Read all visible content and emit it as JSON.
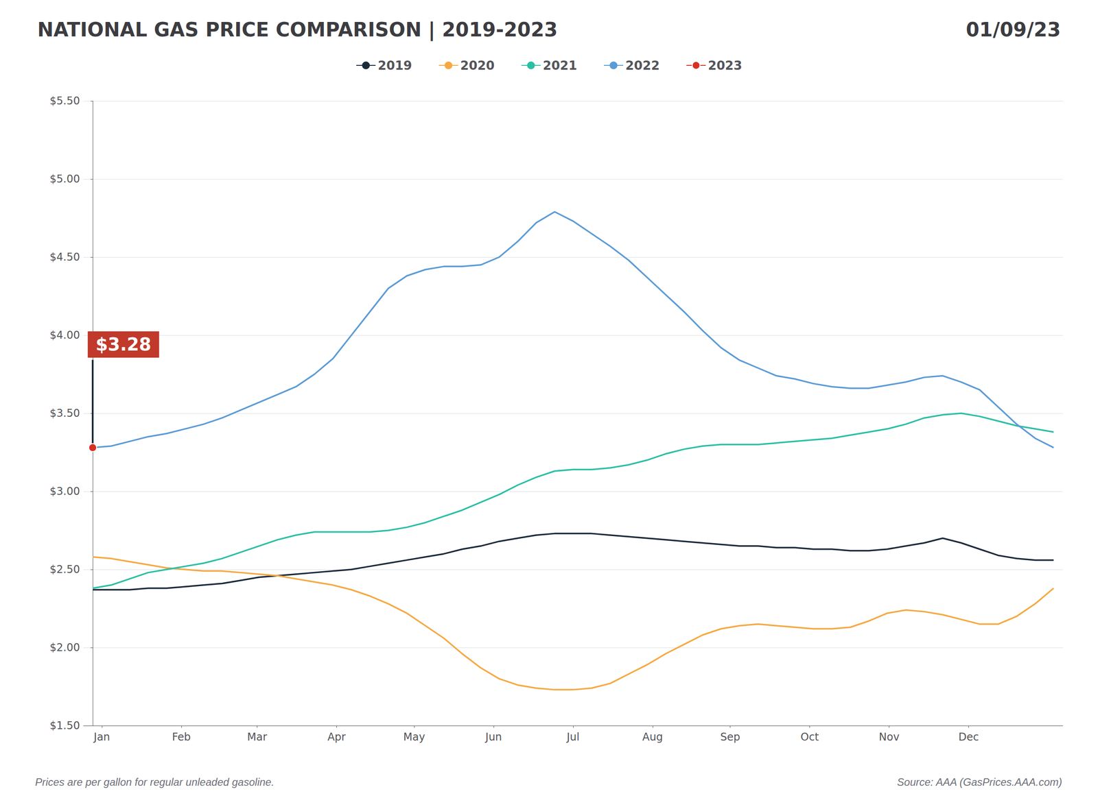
{
  "chart_data": {
    "type": "line",
    "title": "NATIONAL GAS PRICE COMPARISON | 2019-2023",
    "subtitle": "01/09/23",
    "x": [
      0,
      1,
      2,
      3,
      4,
      5,
      6,
      7,
      8,
      9,
      10,
      11,
      12,
      13,
      14,
      15,
      16,
      17,
      18,
      19,
      20,
      21,
      22,
      23,
      24,
      25,
      26,
      27,
      28,
      29,
      30,
      31,
      32,
      33,
      34,
      35,
      36,
      37,
      38,
      39,
      40,
      41,
      42,
      43,
      44,
      45,
      46,
      47,
      48,
      49,
      50,
      51,
      52
    ],
    "series": [
      {
        "name": "2019",
        "color": "#1C2B3A",
        "values": [
          2.37,
          2.37,
          2.37,
          2.38,
          2.38,
          2.39,
          2.4,
          2.41,
          2.43,
          2.45,
          2.46,
          2.47,
          2.48,
          2.49,
          2.5,
          2.52,
          2.54,
          2.56,
          2.58,
          2.6,
          2.63,
          2.65,
          2.68,
          2.7,
          2.72,
          2.73,
          2.73,
          2.73,
          2.72,
          2.71,
          2.7,
          2.69,
          2.68,
          2.67,
          2.66,
          2.65,
          2.65,
          2.64,
          2.64,
          2.63,
          2.63,
          2.62,
          2.62,
          2.63,
          2.65,
          2.67,
          2.7,
          2.67,
          2.63,
          2.59,
          2.57,
          2.56,
          2.56
        ]
      },
      {
        "name": "2020",
        "color": "#F5A942",
        "values": [
          2.58,
          2.57,
          2.55,
          2.53,
          2.51,
          2.5,
          2.49,
          2.49,
          2.48,
          2.47,
          2.46,
          2.44,
          2.42,
          2.4,
          2.37,
          2.33,
          2.28,
          2.22,
          2.14,
          2.06,
          1.96,
          1.87,
          1.8,
          1.76,
          1.74,
          1.73,
          1.73,
          1.74,
          1.77,
          1.83,
          1.89,
          1.96,
          2.02,
          2.08,
          2.12,
          2.14,
          2.15,
          2.14,
          2.13,
          2.12,
          2.12,
          2.13,
          2.17,
          2.22,
          2.24,
          2.23,
          2.21,
          2.18,
          2.15,
          2.15,
          2.2,
          2.28,
          2.38
        ]
      },
      {
        "name": "2021",
        "color": "#2BBFA4",
        "values": [
          2.38,
          2.4,
          2.44,
          2.48,
          2.5,
          2.52,
          2.54,
          2.57,
          2.61,
          2.65,
          2.69,
          2.72,
          2.74,
          2.74,
          2.74,
          2.74,
          2.75,
          2.77,
          2.8,
          2.84,
          2.88,
          2.93,
          2.98,
          3.04,
          3.09,
          3.13,
          3.14,
          3.14,
          3.15,
          3.17,
          3.2,
          3.24,
          3.27,
          3.29,
          3.3,
          3.3,
          3.3,
          3.31,
          3.32,
          3.33,
          3.34,
          3.36,
          3.38,
          3.4,
          3.43,
          3.47,
          3.49,
          3.5,
          3.48,
          3.45,
          3.42,
          3.4,
          3.38
        ]
      },
      {
        "name": "2022",
        "color": "#5B9BD5",
        "values": [
          3.28,
          3.29,
          3.32,
          3.35,
          3.37,
          3.4,
          3.43,
          3.47,
          3.52,
          3.57,
          3.62,
          3.67,
          3.75,
          3.85,
          4.0,
          4.15,
          4.3,
          4.38,
          4.42,
          4.44,
          4.44,
          4.45,
          4.5,
          4.6,
          4.72,
          4.79,
          4.73,
          4.65,
          4.57,
          4.48,
          4.37,
          4.26,
          4.15,
          4.03,
          3.92,
          3.84,
          3.79,
          3.74,
          3.72,
          3.69,
          3.67,
          3.66,
          3.66,
          3.68,
          3.7,
          3.73,
          3.74,
          3.7,
          3.65,
          3.54,
          3.43,
          3.34,
          3.28
        ]
      },
      {
        "name": "2023",
        "color": "#D93025",
        "marker": "circle",
        "values": [
          3.28,
          null,
          null,
          null,
          null,
          null,
          null,
          null,
          null,
          null,
          null,
          null,
          null,
          null,
          null,
          null,
          null,
          null,
          null,
          null,
          null,
          null,
          null,
          null,
          null,
          null,
          null,
          null,
          null,
          null,
          null,
          null,
          null,
          null,
          null,
          null,
          null,
          null,
          null,
          null,
          null,
          null,
          null,
          null,
          null,
          null,
          null,
          null,
          null,
          null,
          null,
          null,
          null
        ]
      }
    ],
    "xlim": [
      -0.5,
      52.5
    ],
    "xticks": [
      {
        "value": 0.5,
        "label": "Jan"
      },
      {
        "value": 4.8,
        "label": "Feb"
      },
      {
        "value": 8.9,
        "label": "Mar"
      },
      {
        "value": 13.2,
        "label": "Apr"
      },
      {
        "value": 17.4,
        "label": "May"
      },
      {
        "value": 21.7,
        "label": "Jun"
      },
      {
        "value": 26.0,
        "label": "Jul"
      },
      {
        "value": 30.3,
        "label": "Aug"
      },
      {
        "value": 34.5,
        "label": "Sep"
      },
      {
        "value": 38.8,
        "label": "Oct"
      },
      {
        "value": 43.1,
        "label": "Nov"
      },
      {
        "value": 47.4,
        "label": "Dec"
      }
    ],
    "ylim": [
      1.5,
      5.5
    ],
    "yticks": [
      {
        "value": 1.5,
        "label": "$1.50"
      },
      {
        "value": 2.0,
        "label": "$2.00"
      },
      {
        "value": 2.5,
        "label": "$2.50"
      },
      {
        "value": 3.0,
        "label": "$3.00"
      },
      {
        "value": 3.5,
        "label": "$3.50"
      },
      {
        "value": 4.0,
        "label": "$4.00"
      },
      {
        "value": 4.5,
        "label": "$4.50"
      },
      {
        "value": 5.0,
        "label": "$5.00"
      },
      {
        "value": 5.5,
        "label": "$5.50"
      }
    ],
    "grid": true,
    "legend": "top",
    "annotations": [
      {
        "text": "$3.28",
        "x": 0,
        "y": 3.28
      },
      {
        "text": "Prices are per gallon for regular unleaded gasoline."
      },
      {
        "text": "Source: AAA (GasPrices.AAA.com)"
      }
    ]
  }
}
